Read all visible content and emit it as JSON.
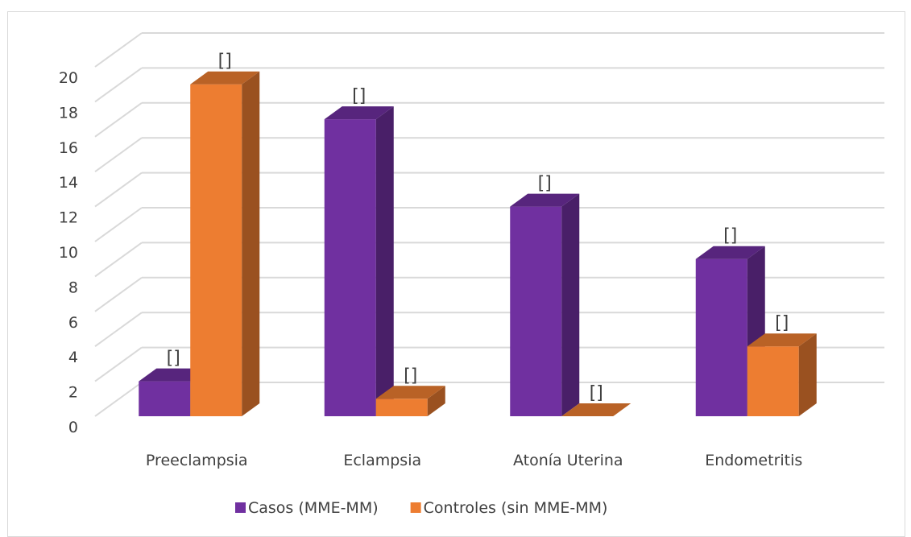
{
  "chart_data": {
    "type": "bar",
    "categories": [
      "Preeclampsia",
      "Eclampsia",
      "Atonía Uterina",
      "Endometritis"
    ],
    "series": [
      {
        "name": "Casos (MME-MM)",
        "values": [
          2,
          17,
          12,
          9
        ],
        "color": "#7030a0",
        "data_labels": [
          "[]",
          "[]",
          "[]",
          "[]"
        ]
      },
      {
        "name": "Controles (sin MME-MM)",
        "values": [
          19,
          1,
          0,
          4
        ],
        "color": "#ed7d31",
        "data_labels": [
          "[]",
          "[]",
          "[]",
          "[]"
        ]
      }
    ],
    "y_ticks": [
      "0",
      "2",
      "4",
      "6",
      "8",
      "10",
      "12",
      "14",
      "16",
      "18",
      "20"
    ],
    "ylim": [
      0,
      20
    ],
    "grid": true,
    "legend_position": "bottom",
    "title": "",
    "xlabel": "",
    "ylabel": ""
  }
}
